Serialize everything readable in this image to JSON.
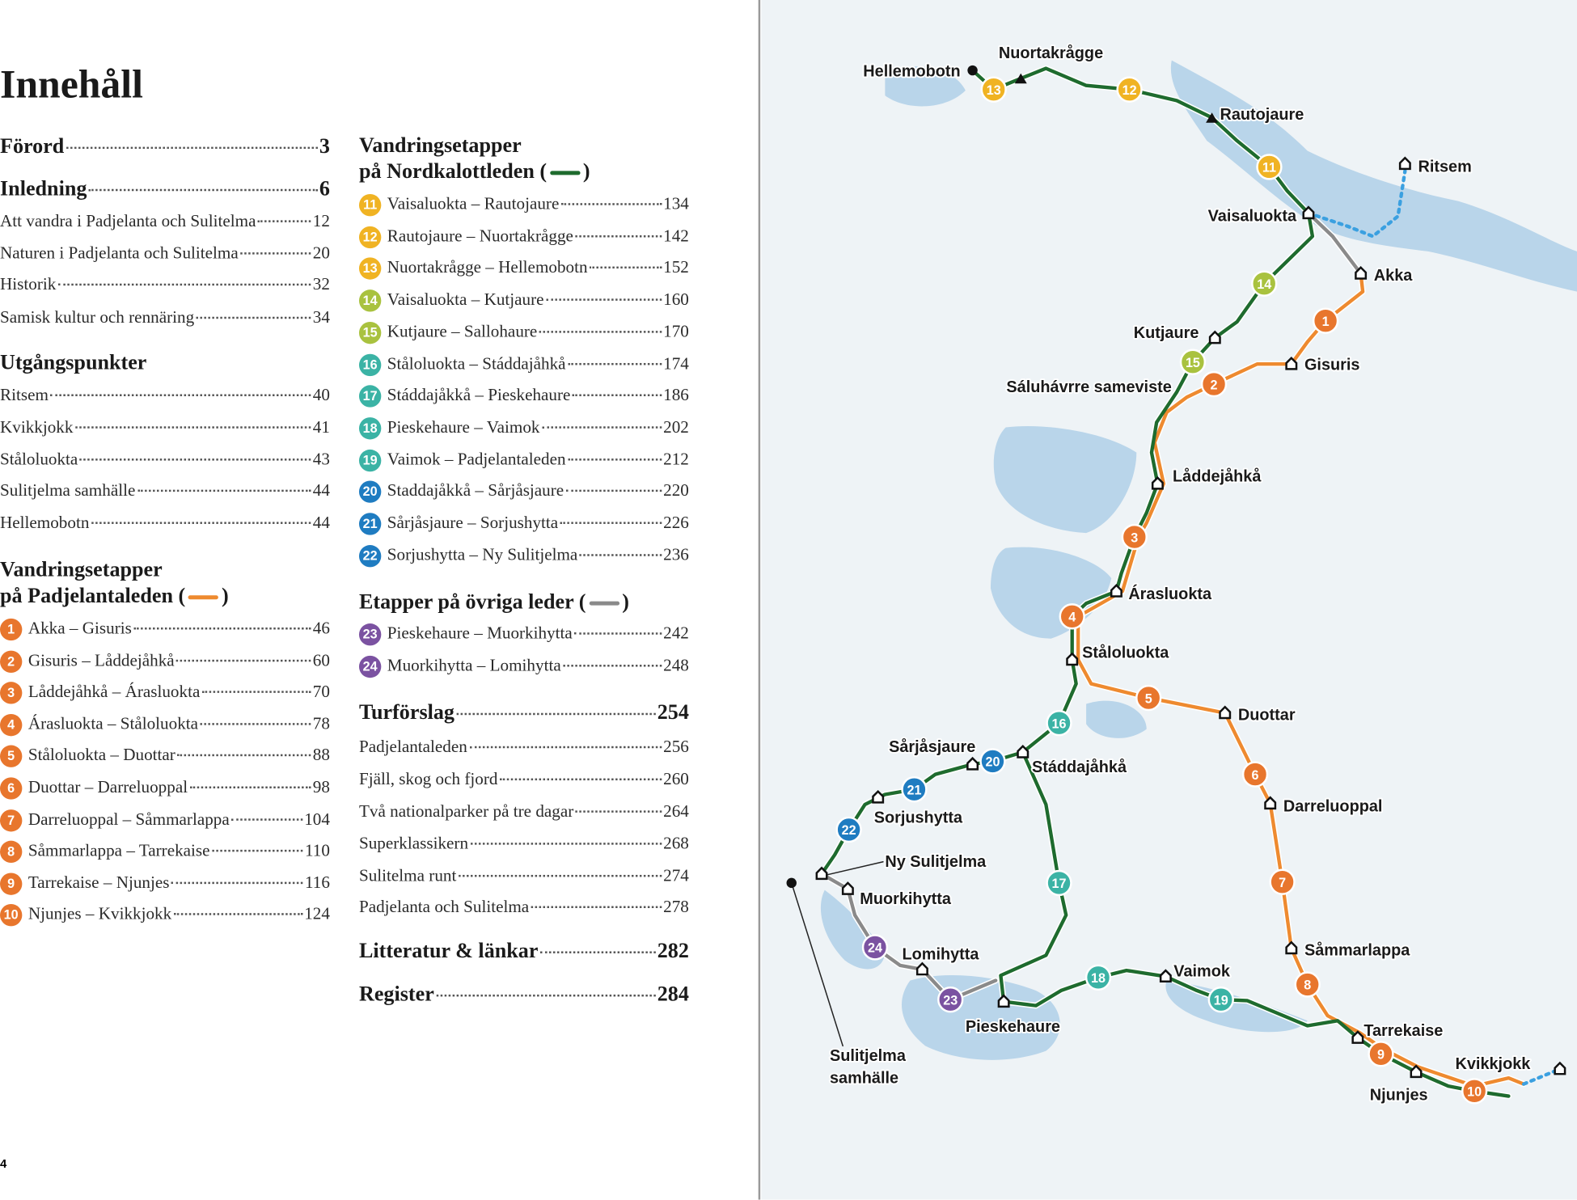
{
  "title": "Innehåll",
  "page_number": "4",
  "toc": {
    "left": [
      {
        "text": "Förord",
        "page": 3,
        "bold": true
      },
      {
        "text": "Inledning",
        "page": 6,
        "bold": true
      },
      {
        "text": "Att vandra i Padjelanta och Sulitelma",
        "page": 12
      },
      {
        "text": "Naturen i Padjelanta och Sulitelma",
        "page": 20
      },
      {
        "text": "Historik",
        "page": 32
      },
      {
        "text": "Samisk kultur och rennäring",
        "page": 34
      },
      {
        "heading": "Utgångspunkter"
      },
      {
        "text": "Ritsem",
        "page": 40
      },
      {
        "text": "Kvikkjokk",
        "page": 41
      },
      {
        "text": "Ståloluokta",
        "page": 43
      },
      {
        "text": "Sulitjelma samhälle",
        "page": 44
      },
      {
        "text": "Hellemobotn",
        "page": 44
      },
      {
        "heading": "Vandringsetapper",
        "heading2": "på Padjelantaleden (",
        "heading_end": ")",
        "swatch": "#ee8a2f"
      },
      {
        "stage": 1,
        "color": "#e8762d",
        "text": "Akka – Gisuris",
        "page": 46
      },
      {
        "stage": 2,
        "color": "#e8762d",
        "text": "Gisuris – Låddejåhkå",
        "page": 60
      },
      {
        "stage": 3,
        "color": "#e8762d",
        "text": "Låddejåhkå – Árasluokta",
        "page": 70
      },
      {
        "stage": 4,
        "color": "#e8762d",
        "text": "Árasluokta – Ståloluokta",
        "page": 78
      },
      {
        "stage": 5,
        "color": "#e8762d",
        "text": "Ståloluokta – Duottar",
        "page": 88
      },
      {
        "stage": 6,
        "color": "#e8762d",
        "text": "Duottar – Darreluoppal",
        "page": 98
      },
      {
        "stage": 7,
        "color": "#e8762d",
        "text": "Darreluoppal – Såmmarlappa",
        "page": 104
      },
      {
        "stage": 8,
        "color": "#e8762d",
        "text": "Såmmarlappa – Tarrekaise",
        "page": 110
      },
      {
        "stage": 9,
        "color": "#e8762d",
        "text": "Tarrekaise – Njunjes",
        "page": 116
      },
      {
        "stage": 10,
        "color": "#e8762d",
        "text": "Njunjes – Kvikkjokk",
        "page": 124
      }
    ],
    "right": [
      {
        "heading": "Vandringsetapper",
        "heading2": "på Nordkalottleden (",
        "heading_end": ")",
        "swatch": "#1e6b2e"
      },
      {
        "stage": 11,
        "color": "#f0b323",
        "text": "Vaisaluokta – Rautojaure",
        "page": 134
      },
      {
        "stage": 12,
        "color": "#f0b323",
        "text": "Rautojaure – Nuortakrågge",
        "page": 142
      },
      {
        "stage": 13,
        "color": "#f0b323",
        "text": "Nuortakrågge – Hellemobotn",
        "page": 152
      },
      {
        "stage": 14,
        "color": "#a9c23f",
        "text": "Vaisaluokta – Kutjaure",
        "page": 160
      },
      {
        "stage": 15,
        "color": "#a9c23f",
        "text": "Kutjaure – Sallohaure",
        "page": 170
      },
      {
        "stage": 16,
        "color": "#3bb3a5",
        "text": "Ståloluokta – Stáddajåhkå",
        "page": 174
      },
      {
        "stage": 17,
        "color": "#3bb3a5",
        "text": "Stáddajåkkå – Pieskehaure",
        "page": 186
      },
      {
        "stage": 18,
        "color": "#3bb3a5",
        "text": "Pieskehaure – Vaimok",
        "page": 202
      },
      {
        "stage": 19,
        "color": "#3bb3a5",
        "text": "Vaimok – Padjelantaleden",
        "page": 212
      },
      {
        "stage": 20,
        "color": "#1f7cc1",
        "text": "Staddajåkkå – Sårjåsjaure",
        "page": 220
      },
      {
        "stage": 21,
        "color": "#1f7cc1",
        "text": "Sårjåsjaure – Sorjushytta",
        "page": 226
      },
      {
        "stage": 22,
        "color": "#1f7cc1",
        "text": "Sorjushytta – Ny Sulitjelma",
        "page": 236
      },
      {
        "heading": "Etapper på övriga leder (",
        "heading_end": ")",
        "swatch": "#8a8a8a"
      },
      {
        "stage": 23,
        "color": "#7b52a1",
        "text": "Pieskehaure – Muorkihytta",
        "page": 242
      },
      {
        "stage": 24,
        "color": "#7b52a1",
        "text": "Muorkihytta – Lomihytta",
        "page": 248
      },
      {
        "text": "Turförslag",
        "page": 254,
        "bold": true
      },
      {
        "text": "Padjelantaleden",
        "page": 256
      },
      {
        "text": "Fjäll, skog och fjord",
        "page": 260
      },
      {
        "text": "Två nationalparker på tre dagar",
        "page": 264
      },
      {
        "text": "Superklassikern",
        "page": 268
      },
      {
        "text": "Sulitelma runt",
        "page": 274
      },
      {
        "text": "Padjelanta och Sulitelma",
        "page": 278
      },
      {
        "text": "Litteratur & länkar",
        "page": 282,
        "bold": true
      },
      {
        "text": "Register",
        "page": 284,
        "bold": true
      }
    ]
  },
  "map": {
    "places": [
      "Hellemobotn",
      "Nuortakrågge",
      "Rautojaure",
      "Ritsem",
      "Vaisaluokta",
      "Akka",
      "Kutjaure",
      "Gisuris",
      "Sáluhávrre sameviste",
      "Låddejåhkå",
      "Árasluokta",
      "Ståloluokta",
      "Duottar",
      "Sårjåsjaure",
      "Stáddajåhkå",
      "Darreluoppal",
      "Sorjushytta",
      "Ny Sulitjelma",
      "Muorkihytta",
      "Lomihytta",
      "Såmmarlappa",
      "Vaimok",
      "Pieskehaure",
      "Tarrekaise",
      "Kvikkjokk",
      "Njunjes",
      "Sulitjelma",
      "samhälle"
    ],
    "stages": [
      1,
      2,
      3,
      4,
      5,
      6,
      7,
      8,
      9,
      10,
      11,
      12,
      13,
      14,
      15,
      16,
      17,
      18,
      19,
      20,
      21,
      22,
      23,
      24
    ],
    "stage_colors": [
      "#e8762d",
      "#e8762d",
      "#e8762d",
      "#e8762d",
      "#e8762d",
      "#e8762d",
      "#e8762d",
      "#e8762d",
      "#e8762d",
      "#e8762d",
      "#f0b323",
      "#f0b323",
      "#f0b323",
      "#a9c23f",
      "#a9c23f",
      "#3bb3a5",
      "#3bb3a5",
      "#3bb3a5",
      "#3bb3a5",
      "#1f7cc1",
      "#1f7cc1",
      "#1f7cc1",
      "#7b52a1",
      "#7b52a1"
    ]
  }
}
